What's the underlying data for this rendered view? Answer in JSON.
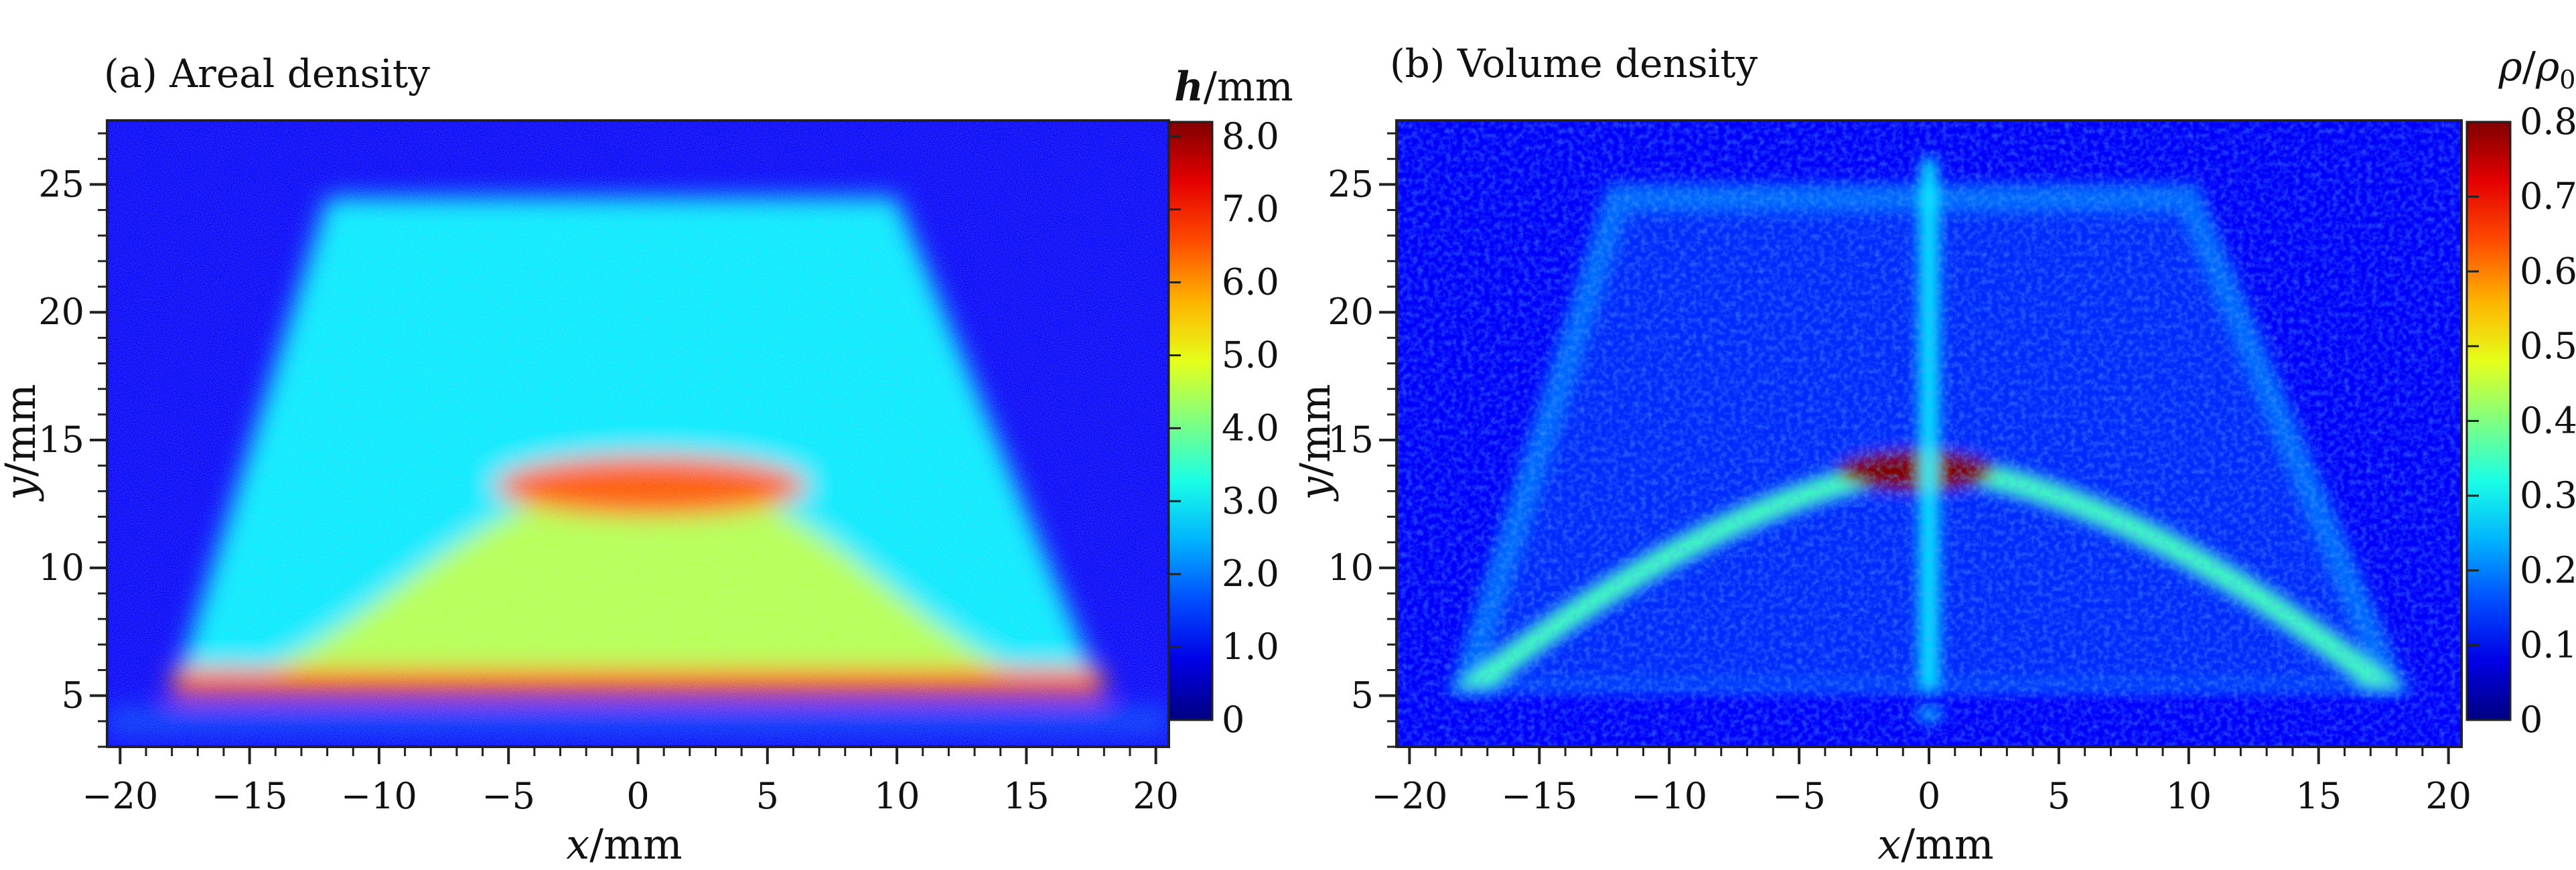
{
  "chart_data": [
    {
      "type": "heatmap",
      "title": "(a) Areal density",
      "xlabel": "x/mm",
      "ylabel": "y/mm",
      "xlim": [
        -20.5,
        20.5
      ],
      "ylim": [
        3,
        27.5
      ],
      "xticks": [
        -20,
        -15,
        -10,
        -5,
        0,
        5,
        10,
        15,
        20
      ],
      "xtick_labels": [
        "−20",
        "−15",
        "−10",
        "−5",
        "0",
        "5",
        "10",
        "15",
        "20"
      ],
      "yticks": [
        5,
        10,
        15,
        20,
        25
      ],
      "ytick_labels": [
        "5",
        "10",
        "15",
        "20",
        "25"
      ],
      "colorbar": {
        "label": "h/mm",
        "range": [
          0,
          8.2
        ],
        "ticks": [
          0,
          1,
          2,
          3,
          4,
          5,
          6,
          7,
          8
        ],
        "tick_labels": [
          "0",
          "1.0",
          "2.0",
          "3.0",
          "4.0",
          "5.0",
          "6.0",
          "7.0",
          "8.0"
        ],
        "colormap": "jet"
      },
      "features": [
        {
          "shape": "trapezoid",
          "top_y": 24.5,
          "top_x": [
            -12,
            10
          ],
          "base_y": 5,
          "base_x": [
            -18,
            18
          ],
          "value": 3.0
        },
        {
          "shape": "bell",
          "peak_x": 0.5,
          "peak_y": 13.5,
          "base_x": [
            -17,
            17
          ],
          "base_y": 5,
          "value": 4.5,
          "peak_value": 6.5
        },
        {
          "shape": "band",
          "y": 5.5,
          "x": [
            -18,
            18
          ],
          "value": 6.5
        },
        {
          "shape": "band",
          "y": 4.0,
          "x": [
            -20.5,
            20.5
          ],
          "value": 1.5
        }
      ]
    },
    {
      "type": "heatmap",
      "title": "(b) Volume density",
      "xlabel": "x/mm",
      "ylabel": "y/mm",
      "xlim": [
        -20.5,
        20.5
      ],
      "ylim": [
        3,
        27.5
      ],
      "xticks": [
        -20,
        -15,
        -10,
        -5,
        0,
        5,
        10,
        15,
        20
      ],
      "xtick_labels": [
        "−20",
        "−15",
        "−10",
        "−5",
        "0",
        "5",
        "10",
        "15",
        "20"
      ],
      "yticks": [
        5,
        10,
        15,
        20,
        25
      ],
      "ytick_labels": [
        "5",
        "10",
        "15",
        "20",
        "25"
      ],
      "colorbar": {
        "label": "ρ/ρ0",
        "range": [
          0,
          0.8
        ],
        "ticks": [
          0,
          0.1,
          0.2,
          0.3,
          0.4,
          0.5,
          0.6,
          0.7,
          0.8
        ],
        "tick_labels": [
          "0",
          "0.1",
          "0.2",
          "0.3",
          "0.4",
          "0.5",
          "0.6",
          "0.7",
          "0.8"
        ],
        "colormap": "jet"
      },
      "features": [
        {
          "shape": "trapezoid_outline",
          "top_y": 24.5,
          "top_x": [
            -12,
            10
          ],
          "base_y": 5,
          "base_x": [
            -18,
            18
          ],
          "value": 0.2
        },
        {
          "shape": "chevron",
          "peak_x": 0,
          "peak_y": 14,
          "base_x": [
            -18,
            18
          ],
          "base_y": 5,
          "value": 0.35,
          "peak_value": 0.8
        },
        {
          "shape": "vertical_streak",
          "x": 0,
          "y": [
            4,
            26
          ],
          "value": 0.3
        },
        {
          "shape": "band",
          "y": 4.8,
          "x": [
            -20.5,
            20.5
          ],
          "value": 0.1
        }
      ]
    }
  ]
}
